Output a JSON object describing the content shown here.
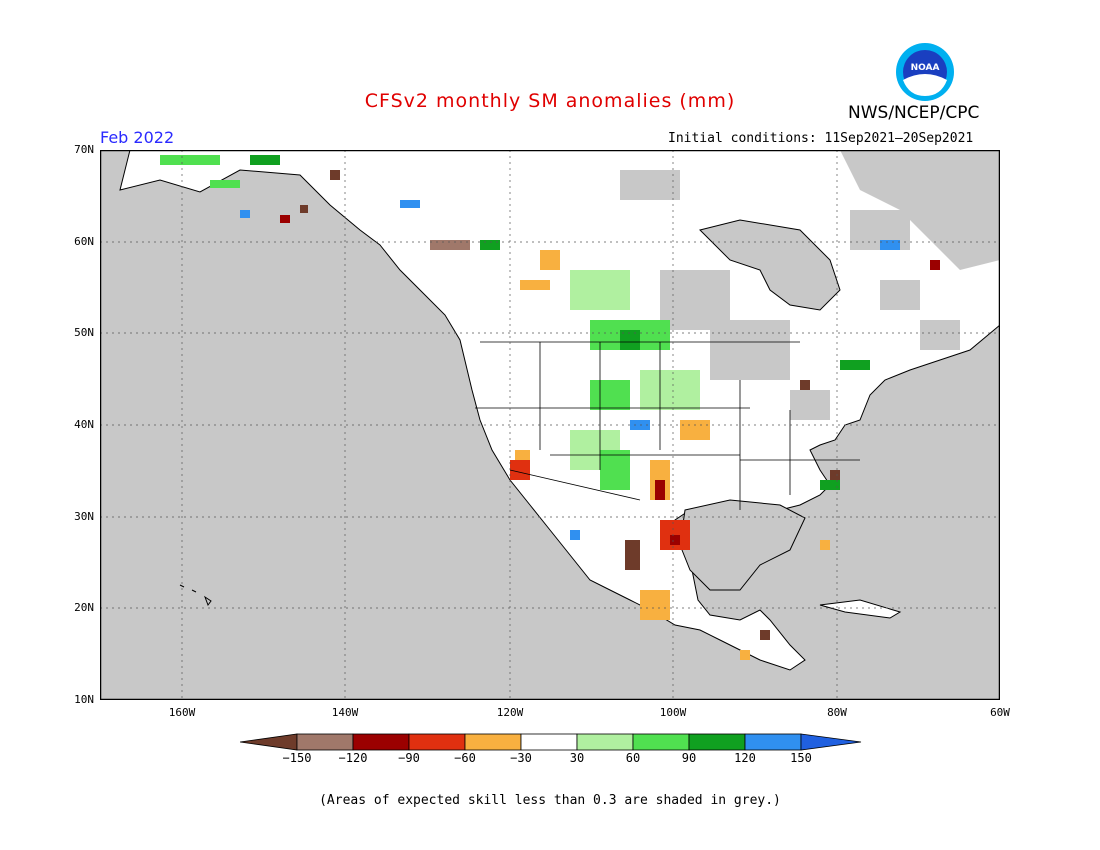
{
  "title": "CFSv2 monthly SM anomalies (mm)",
  "month": "Feb 2022",
  "agency": "NWS/NCEP/CPC",
  "logo_text": "NOAA",
  "initial_conditions": "Initial conditions: 11Sep2021–20Sep2021",
  "lat_labels": [
    "70N",
    "60N",
    "50N",
    "40N",
    "30N",
    "20N",
    "10N"
  ],
  "lon_labels": [
    "160W",
    "140W",
    "120W",
    "100W",
    "80W",
    "60W"
  ],
  "colorbar": {
    "ticks": [
      "−150",
      "−120",
      "−90",
      "−60",
      "−30",
      "30",
      "60",
      "90",
      "120",
      "150"
    ],
    "colors": [
      "#6e3b2a",
      "#a0786a",
      "#9b0000",
      "#e03010",
      "#f8b040",
      "#ffffff",
      "#b0f0a0",
      "#50e050",
      "#10a020",
      "#3090f0",
      "#2060e0"
    ]
  },
  "footnote": "(Areas of expected skill less than 0.3 are shaded in grey.)",
  "colors": {
    "grey_mask": "#c8c8c8",
    "land_white": "#ffffff",
    "title_red": "#e00000",
    "month_blue": "#2a2aff"
  }
}
